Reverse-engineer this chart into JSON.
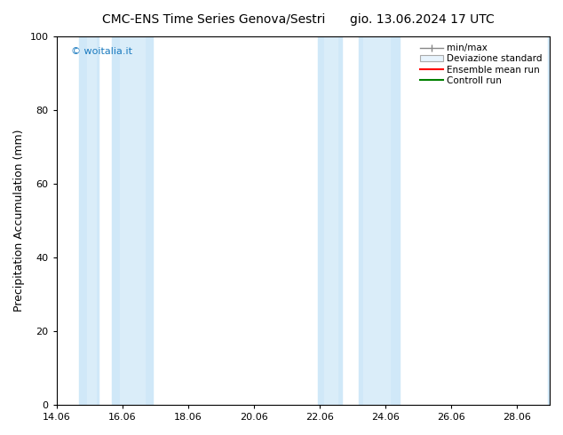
{
  "title_left": "CMC-ENS Time Series Genova/Sestri",
  "title_right": "gio. 13.06.2024 17 UTC",
  "ylabel": "Precipitation Accumulation (mm)",
  "ylim": [
    0,
    100
  ],
  "xlim": [
    14.06,
    29.06
  ],
  "xticks": [
    14.06,
    16.06,
    18.06,
    20.06,
    22.06,
    24.06,
    26.06,
    28.06
  ],
  "xtick_labels": [
    "14.06",
    "16.06",
    "18.06",
    "20.06",
    "22.06",
    "24.06",
    "26.06",
    "28.06"
  ],
  "yticks": [
    0,
    20,
    40,
    60,
    80,
    100
  ],
  "watermark": "© woitalia.it",
  "watermark_color": "#1a7abf",
  "background_color": "#ffffff",
  "legend_labels": [
    "min/max",
    "Deviazione standard",
    "Ensemble mean run",
    "Controll run"
  ],
  "ensemble_color": "#ff0000",
  "control_color": "#008000",
  "minmax_color": "#d0e8f8",
  "std_color": "#daedf9",
  "minmax_bands": [
    [
      14.75,
      15.35
    ],
    [
      15.75,
      17.0
    ],
    [
      22.0,
      22.75
    ],
    [
      23.25,
      24.5
    ],
    [
      29.0,
      29.06
    ]
  ],
  "std_bands": [
    [
      15.0,
      15.25
    ],
    [
      16.0,
      16.75
    ],
    [
      22.2,
      22.6
    ],
    [
      23.4,
      24.2
    ]
  ],
  "title_fontsize": 10,
  "legend_fontsize": 7.5,
  "tick_fontsize": 8,
  "ylabel_fontsize": 9
}
